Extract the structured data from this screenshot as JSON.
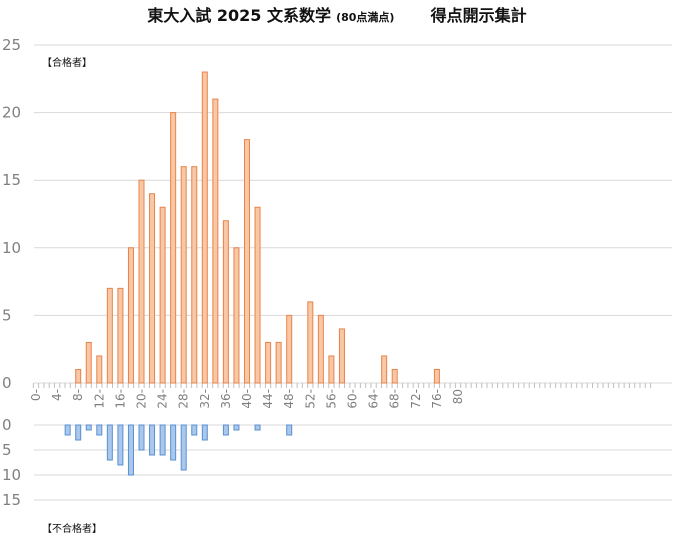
{
  "title": {
    "main": "東大入試 2025 文系数学",
    "sub": "(80点満点)",
    "right": "得点開示集計"
  },
  "labels": {
    "pass": "【合格者】",
    "fail": "【不合格者】"
  },
  "colors": {
    "pass_fill": "#f8c8a6",
    "pass_stroke": "#e8834a",
    "fail_fill": "#a9c8ec",
    "fail_stroke": "#5b8fd0",
    "grid": "#d9d9d9",
    "tick_text": "#808080"
  },
  "chart_data": [
    {
      "type": "bar",
      "name": "pass",
      "x": [
        0,
        1,
        2,
        3,
        4,
        5,
        6,
        7,
        8,
        9,
        10,
        11,
        12,
        13,
        14,
        15,
        16,
        17,
        18,
        19,
        20,
        21,
        22,
        23,
        24,
        25,
        26,
        27,
        28,
        29,
        30,
        31,
        32,
        33,
        34,
        35,
        36,
        37,
        38,
        39,
        40,
        41,
        42,
        43,
        44,
        45,
        46,
        47,
        48,
        49,
        50,
        51,
        52,
        53,
        54,
        55,
        56,
        57,
        58,
        59,
        60,
        61,
        62,
        63,
        64,
        65,
        66,
        67,
        68,
        69,
        70,
        71,
        72,
        73,
        74,
        75,
        76,
        77,
        78,
        79,
        80
      ],
      "values": [
        0,
        0,
        0,
        0,
        0,
        0,
        0,
        0,
        1,
        0,
        3,
        0,
        2,
        0,
        7,
        0,
        7,
        0,
        10,
        0,
        15,
        0,
        14,
        0,
        13,
        0,
        20,
        0,
        16,
        0,
        16,
        0,
        23,
        0,
        21,
        0,
        12,
        0,
        10,
        0,
        18,
        0,
        13,
        0,
        3,
        0,
        3,
        0,
        5,
        0,
        0,
        0,
        6,
        0,
        5,
        0,
        2,
        0,
        4,
        0,
        0,
        0,
        0,
        0,
        0,
        0,
        2,
        0,
        1,
        0,
        0,
        0,
        0,
        0,
        0,
        0,
        1,
        0,
        0,
        0,
        0
      ],
      "ylim": [
        0,
        25
      ],
      "yticks": [
        0,
        5,
        10,
        15,
        20,
        25
      ]
    },
    {
      "type": "bar",
      "name": "fail",
      "x": [
        0,
        1,
        2,
        3,
        4,
        5,
        6,
        7,
        8,
        9,
        10,
        11,
        12,
        13,
        14,
        15,
        16,
        17,
        18,
        19,
        20,
        21,
        22,
        23,
        24,
        25,
        26,
        27,
        28,
        29,
        30,
        31,
        32,
        33,
        34,
        35,
        36,
        37,
        38,
        39,
        40,
        41,
        42,
        43,
        44,
        45,
        46,
        47,
        48,
        49,
        50,
        51,
        52,
        53,
        54,
        55,
        56,
        57,
        58,
        59,
        60,
        61,
        62,
        63,
        64,
        65,
        66,
        67,
        68,
        69,
        70,
        71,
        72,
        73,
        74,
        75,
        76,
        77,
        78,
        79,
        80
      ],
      "values": [
        0,
        0,
        0,
        0,
        0,
        0,
        2,
        0,
        3,
        0,
        1,
        0,
        2,
        0,
        7,
        0,
        8,
        0,
        10,
        0,
        5,
        0,
        6,
        0,
        6,
        0,
        7,
        0,
        9,
        0,
        2,
        0,
        3,
        0,
        0,
        0,
        2,
        0,
        1,
        0,
        0,
        0,
        1,
        0,
        0,
        0,
        0,
        0,
        2,
        0,
        0,
        0,
        0,
        0,
        0,
        0,
        0,
        0,
        0,
        0,
        0,
        0,
        0,
        0,
        0,
        0,
        0,
        0,
        0,
        0,
        0,
        0,
        0,
        0,
        0,
        0,
        0,
        0,
        0,
        0,
        0
      ],
      "ylim": [
        0,
        15
      ],
      "yticks": [
        0,
        5,
        10,
        15
      ],
      "inverted": true
    }
  ],
  "xtick_labels": [
    "0-",
    "4-",
    "8-",
    "12-",
    "16-",
    "20-",
    "24-",
    "28-",
    "32-",
    "36-",
    "40-",
    "44-",
    "48-",
    "52-",
    "56-",
    "60-",
    "64-",
    "68-",
    "72-",
    "76-",
    "80"
  ]
}
